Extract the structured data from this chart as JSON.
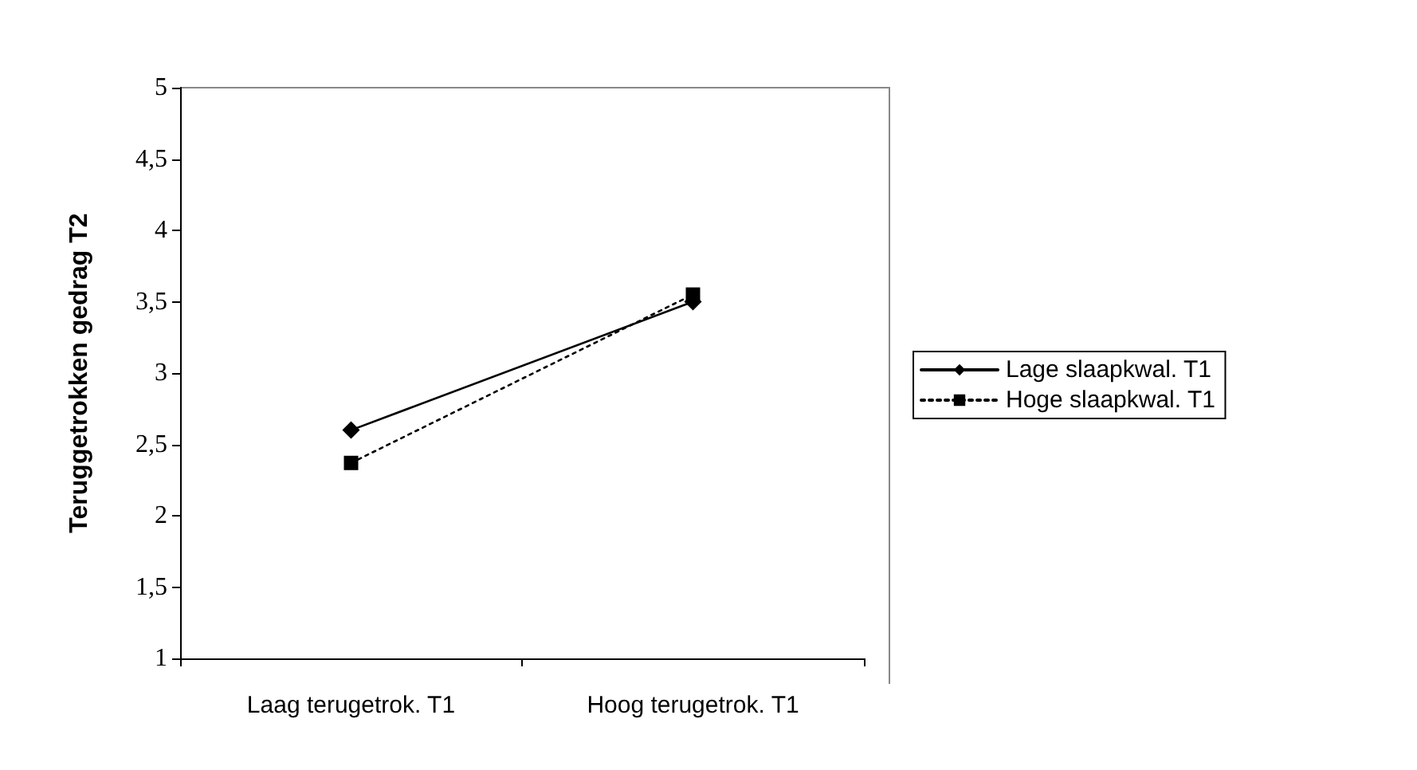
{
  "chart_data": {
    "type": "line",
    "ylabel": "Teruggetrokken gedrag T2",
    "categories": [
      "Laag terugetrok. T1",
      "Hoog terugetrok. T1"
    ],
    "series": [
      {
        "name": "Lage slaapkwal. T1",
        "color": "#000000",
        "values": [
          2.6,
          3.5
        ],
        "marker": "diamond",
        "line_style": "solid"
      },
      {
        "name": "Hoge slaapkwal. T1",
        "color": "#000000",
        "values": [
          2.37,
          3.55
        ],
        "marker": "square",
        "line_style": "dotted"
      }
    ],
    "ylim": [
      1,
      5
    ],
    "yticks": [
      1,
      {
        "value": 1.5,
        "label": "1,5"
      },
      2,
      {
        "value": 2.5,
        "label": "2,5"
      },
      3,
      {
        "value": 3.5,
        "label": "3,5"
      },
      4,
      {
        "value": 4.5,
        "label": "4,5"
      },
      5
    ],
    "grid": false,
    "legend": "right"
  }
}
